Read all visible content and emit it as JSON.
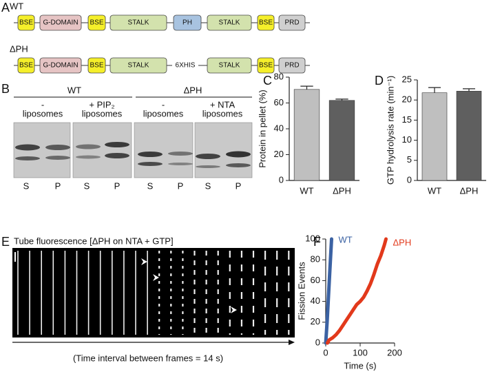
{
  "panel_labels": [
    "A",
    "B",
    "C",
    "D",
    "E",
    "F"
  ],
  "domains": {
    "wt": {
      "label": "WT",
      "boxes": [
        {
          "text": "BSE",
          "color": "#f5ef2a"
        },
        {
          "text": "G-DOMAIN",
          "color": "#e6c4c4"
        },
        {
          "text": "BSE",
          "color": "#f5ef2a"
        },
        {
          "text": "STALK",
          "color": "#d3e2ad"
        },
        {
          "text": "PH",
          "color": "#a8c3e0"
        },
        {
          "text": "STALK",
          "color": "#d3e2ad"
        },
        {
          "text": "BSE",
          "color": "#f5ef2a"
        },
        {
          "text": "PRD",
          "color": "#cfcfcf"
        }
      ]
    },
    "dph": {
      "label": "ΔPH",
      "linker": "6XHIS",
      "boxes": [
        {
          "text": "BSE",
          "color": "#f5ef2a"
        },
        {
          "text": "G-DOMAIN",
          "color": "#e6c4c4"
        },
        {
          "text": "BSE",
          "color": "#f5ef2a"
        },
        {
          "text": "STALK",
          "color": "#d3e2ad"
        },
        {
          "text": "STALK",
          "color": "#d3e2ad"
        },
        {
          "text": "BSE",
          "color": "#f5ef2a"
        },
        {
          "text": "PRD",
          "color": "#cfcfcf"
        }
      ]
    }
  },
  "gel": {
    "groups": [
      {
        "label": "WT",
        "lanes": [
          {
            "top": "-",
            "bottom": "liposomes"
          },
          {
            "top": "+ PIP₂",
            "bottom": "liposomes"
          }
        ]
      },
      {
        "label": "ΔPH",
        "lanes": [
          {
            "top": "-",
            "bottom": "liposomes"
          },
          {
            "top": "+ NTA",
            "bottom": "liposomes"
          }
        ]
      }
    ],
    "lane_labels": [
      "S",
      "P",
      "S",
      "P",
      "S",
      "P",
      "S",
      "P"
    ]
  },
  "kymograph": {
    "title": "Tube fluorescence [ΔPH on NTA + GTP]",
    "caption": "(Time interval between frames = 14 s)"
  },
  "chart_data": [
    {
      "type": "bar",
      "ylabel": "Protein in pellet (%)",
      "categories": [
        "WT",
        "ΔPH"
      ],
      "values": [
        70.5,
        62
      ],
      "errors": [
        2.5,
        1
      ],
      "colors": [
        "#bfbfbf",
        "#5f5f5f"
      ],
      "ylim": [
        0,
        80
      ],
      "yticks": [
        0,
        20,
        40,
        60,
        80
      ]
    },
    {
      "type": "bar",
      "ylabel": "GTP hydrolysis rate (min⁻¹)",
      "categories": [
        "WT",
        "ΔPH"
      ],
      "values": [
        21.8,
        22.2
      ],
      "errors": [
        1.3,
        0.6
      ],
      "colors": [
        "#bfbfbf",
        "#5f5f5f"
      ],
      "ylim": [
        0,
        25
      ],
      "yticks": [
        0,
        5,
        10,
        15,
        20,
        25
      ]
    },
    {
      "type": "line",
      "xlabel": "Time (s)",
      "ylabel": "Fission Events",
      "xlim": [
        0,
        200
      ],
      "xticks": [
        0,
        100,
        200
      ],
      "ylim": [
        0,
        100
      ],
      "yticks": [
        0,
        20,
        40,
        60,
        80,
        100
      ],
      "series": [
        {
          "name": "WT",
          "color": "#3b62a3",
          "x": [
            0,
            4,
            8,
            12,
            15,
            17
          ],
          "values": [
            0,
            20,
            45,
            70,
            88,
            100
          ]
        },
        {
          "name": "ΔPH",
          "color": "#e2391b",
          "x": [
            5,
            10,
            20,
            30,
            40,
            50,
            60,
            70,
            80,
            90,
            100,
            110,
            120,
            130,
            140,
            150,
            160,
            170,
            175
          ],
          "values": [
            0,
            3,
            5,
            8,
            12,
            17,
            22,
            27,
            32,
            37,
            40,
            44,
            50,
            57,
            66,
            76,
            84,
            94,
            100
          ]
        }
      ]
    }
  ]
}
